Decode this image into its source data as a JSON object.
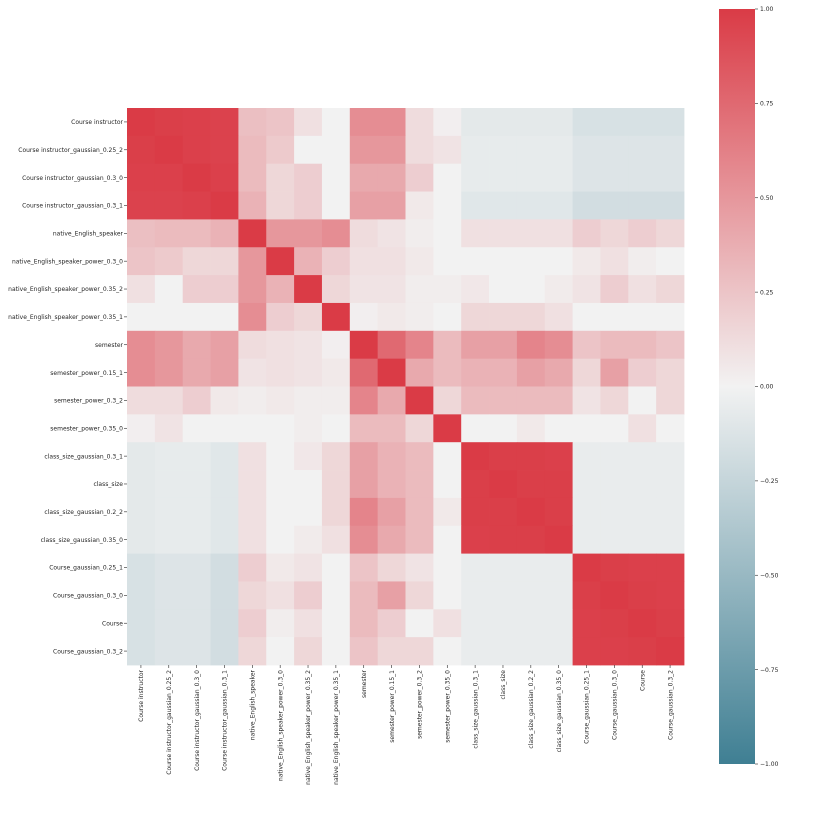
{
  "chart_data": {
    "type": "heatmap",
    "title": "",
    "xlabel": "",
    "ylabel": "",
    "labels": [
      "Course instructor",
      "Course instructor_gaussian_0.25_2",
      "Course instructor_gaussian_0.3_0",
      "Course instructor_gaussian_0.3_1",
      "native_English_speaker",
      "native_English_speaker_power_0.3_0",
      "native_English_speaker_power_0.35_2",
      "native_English_speaker_power_0.35_1",
      "semester",
      "semester_power_0.15_1",
      "semester_power_0.3_2",
      "semester_power_0.35_0",
      "class_size_gaussian_0.3_1",
      "class_size",
      "class_size_gaussian_0.2_2",
      "class_size_gaussian_0.35_0",
      "Course_gaussian_0.25_1",
      "Course_gaussian_0.3_0",
      "Course",
      "Course_gaussian_0.3_2"
    ],
    "matrix": [
      [
        1.0,
        0.98,
        0.97,
        0.96,
        0.28,
        0.25,
        0.1,
        0.0,
        0.55,
        0.55,
        0.12,
        0.02,
        -0.08,
        -0.08,
        -0.08,
        -0.08,
        -0.15,
        -0.15,
        -0.15,
        -0.15
      ],
      [
        0.98,
        1.0,
        0.97,
        0.96,
        0.3,
        0.22,
        0.0,
        0.0,
        0.5,
        0.5,
        0.12,
        0.08,
        -0.06,
        -0.06,
        -0.06,
        -0.06,
        -0.12,
        -0.12,
        -0.12,
        -0.12
      ],
      [
        0.97,
        0.97,
        1.0,
        0.97,
        0.3,
        0.15,
        0.2,
        0.0,
        0.4,
        0.4,
        0.2,
        0.0,
        -0.06,
        -0.06,
        -0.06,
        -0.06,
        -0.12,
        -0.12,
        -0.12,
        -0.12
      ],
      [
        0.96,
        0.96,
        0.97,
        1.0,
        0.35,
        0.15,
        0.2,
        0.0,
        0.45,
        0.45,
        0.05,
        0.0,
        -0.1,
        -0.1,
        -0.1,
        -0.1,
        -0.18,
        -0.18,
        -0.18,
        -0.18
      ],
      [
        0.28,
        0.3,
        0.3,
        0.35,
        1.0,
        0.5,
        0.5,
        0.55,
        0.12,
        0.08,
        0.03,
        0.0,
        0.1,
        0.1,
        0.1,
        0.1,
        0.2,
        0.15,
        0.2,
        0.15
      ],
      [
        0.25,
        0.22,
        0.15,
        0.15,
        0.5,
        1.0,
        0.35,
        0.2,
        0.1,
        0.1,
        0.05,
        0.0,
        0.0,
        0.0,
        0.0,
        0.0,
        0.05,
        0.1,
        0.03,
        0.0
      ],
      [
        0.1,
        0.0,
        0.2,
        0.2,
        0.5,
        0.35,
        1.0,
        0.15,
        0.08,
        0.08,
        0.03,
        0.03,
        0.06,
        0.0,
        0.0,
        0.04,
        0.08,
        0.2,
        0.1,
        0.15
      ],
      [
        0.0,
        0.0,
        0.0,
        0.0,
        0.55,
        0.2,
        0.15,
        1.0,
        0.02,
        0.05,
        0.03,
        0.0,
        0.15,
        0.15,
        0.15,
        0.1,
        0.0,
        0.0,
        0.0,
        0.0
      ],
      [
        0.55,
        0.5,
        0.4,
        0.45,
        0.12,
        0.1,
        0.08,
        0.02,
        1.0,
        0.75,
        0.6,
        0.3,
        0.45,
        0.45,
        0.6,
        0.55,
        0.25,
        0.3,
        0.3,
        0.25
      ],
      [
        0.55,
        0.5,
        0.4,
        0.45,
        0.08,
        0.1,
        0.08,
        0.05,
        0.75,
        1.0,
        0.4,
        0.3,
        0.35,
        0.35,
        0.45,
        0.4,
        0.15,
        0.45,
        0.2,
        0.15
      ],
      [
        0.12,
        0.12,
        0.2,
        0.05,
        0.03,
        0.05,
        0.03,
        0.03,
        0.6,
        0.4,
        1.0,
        0.15,
        0.3,
        0.3,
        0.3,
        0.3,
        0.08,
        0.15,
        0.0,
        0.15
      ],
      [
        0.02,
        0.08,
        0.0,
        0.0,
        0.0,
        0.0,
        0.03,
        0.0,
        0.3,
        0.3,
        0.15,
        1.0,
        0.0,
        0.0,
        0.05,
        0.0,
        0.0,
        0.0,
        0.1,
        0.0
      ],
      [
        -0.08,
        -0.06,
        -0.06,
        -0.1,
        0.1,
        0.0,
        0.06,
        0.15,
        0.45,
        0.35,
        0.3,
        0.0,
        1.0,
        0.98,
        0.98,
        0.97,
        -0.05,
        -0.05,
        -0.05,
        -0.05
      ],
      [
        -0.08,
        -0.06,
        -0.06,
        -0.1,
        0.1,
        0.0,
        0.0,
        0.15,
        0.45,
        0.35,
        0.3,
        0.0,
        0.98,
        1.0,
        0.98,
        0.98,
        -0.05,
        -0.05,
        -0.05,
        -0.05
      ],
      [
        -0.08,
        -0.06,
        -0.06,
        -0.1,
        0.1,
        0.0,
        0.0,
        0.15,
        0.6,
        0.45,
        0.3,
        0.05,
        0.98,
        0.98,
        1.0,
        0.98,
        -0.05,
        -0.05,
        -0.05,
        -0.05
      ],
      [
        -0.08,
        -0.06,
        -0.06,
        -0.1,
        0.1,
        0.0,
        0.04,
        0.1,
        0.55,
        0.4,
        0.3,
        0.0,
        0.97,
        0.98,
        0.98,
        1.0,
        -0.05,
        -0.05,
        -0.05,
        -0.05
      ],
      [
        -0.15,
        -0.12,
        -0.12,
        -0.18,
        0.2,
        0.05,
        0.08,
        0.0,
        0.25,
        0.15,
        0.08,
        0.0,
        -0.05,
        -0.05,
        -0.05,
        -0.05,
        1.0,
        0.98,
        0.97,
        0.97
      ],
      [
        -0.15,
        -0.12,
        -0.12,
        -0.18,
        0.15,
        0.1,
        0.2,
        0.0,
        0.3,
        0.45,
        0.15,
        0.0,
        -0.05,
        -0.05,
        -0.05,
        -0.05,
        0.98,
        1.0,
        0.98,
        0.97
      ],
      [
        -0.15,
        -0.12,
        -0.12,
        -0.18,
        0.2,
        0.03,
        0.1,
        0.0,
        0.3,
        0.2,
        0.0,
        0.1,
        -0.05,
        -0.05,
        -0.05,
        -0.05,
        0.97,
        0.98,
        1.0,
        0.98
      ],
      [
        -0.15,
        -0.12,
        -0.12,
        -0.18,
        0.15,
        0.0,
        0.15,
        0.0,
        0.25,
        0.15,
        0.15,
        0.0,
        -0.05,
        -0.05,
        -0.05,
        -0.05,
        0.97,
        0.97,
        0.98,
        1.0
      ]
    ],
    "colorbar": {
      "range": [
        -1.0,
        1.0
      ],
      "ticks": [
        "1.00",
        "0.75",
        "0.50",
        "0.25",
        "0.00",
        "−0.25",
        "−0.50",
        "−0.75",
        "−1.00"
      ],
      "tick_values": [
        1.0,
        0.75,
        0.5,
        0.25,
        0.0,
        -0.25,
        -0.5,
        -0.75,
        -1.0
      ]
    },
    "colors": {
      "negative": "#3f7f93",
      "neutral": "#f2f2f2",
      "positive": "#da3b46"
    }
  }
}
